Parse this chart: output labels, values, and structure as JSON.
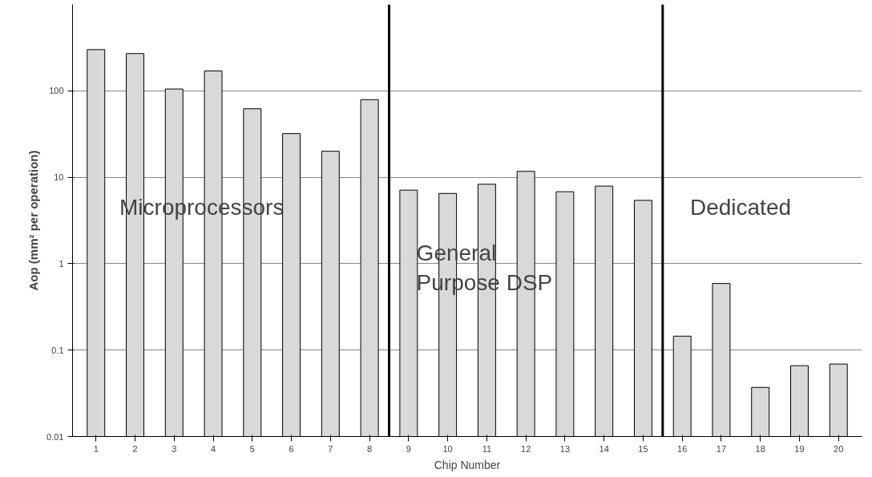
{
  "chart_data": {
    "type": "bar",
    "xlabel": "Chip Number",
    "ylabel": "Aop (mm² per operation)",
    "x": [
      1,
      2,
      3,
      4,
      5,
      6,
      7,
      8,
      9,
      10,
      11,
      12,
      13,
      14,
      15,
      16,
      17,
      18,
      19,
      20
    ],
    "values": [
      300,
      270,
      105,
      170,
      62,
      32,
      20,
      79,
      7.1,
      6.5,
      8.3,
      11.7,
      6.8,
      7.9,
      5.4,
      0.145,
      0.59,
      0.037,
      0.066,
      0.069
    ],
    "color": "#d9d9d9",
    "log": true,
    "ylim": [
      0.01,
      1000
    ],
    "yticks": [
      0.01,
      0.1,
      1,
      10,
      100
    ],
    "xlim": [
      0.4,
      20.6
    ],
    "xticks": [
      1,
      2,
      3,
      4,
      5,
      6,
      7,
      8,
      9,
      10,
      11,
      12,
      13,
      14,
      15,
      16,
      17,
      18,
      19,
      20
    ],
    "grid": "y",
    "ref_lines": [
      {
        "axis": "x",
        "value": 8.5,
        "color": "#000000"
      },
      {
        "axis": "x",
        "value": 15.5,
        "color": "#000000"
      }
    ],
    "annotations": [
      "Microprocessors",
      "General\nPurpose DSP",
      "Dedicated"
    ]
  }
}
